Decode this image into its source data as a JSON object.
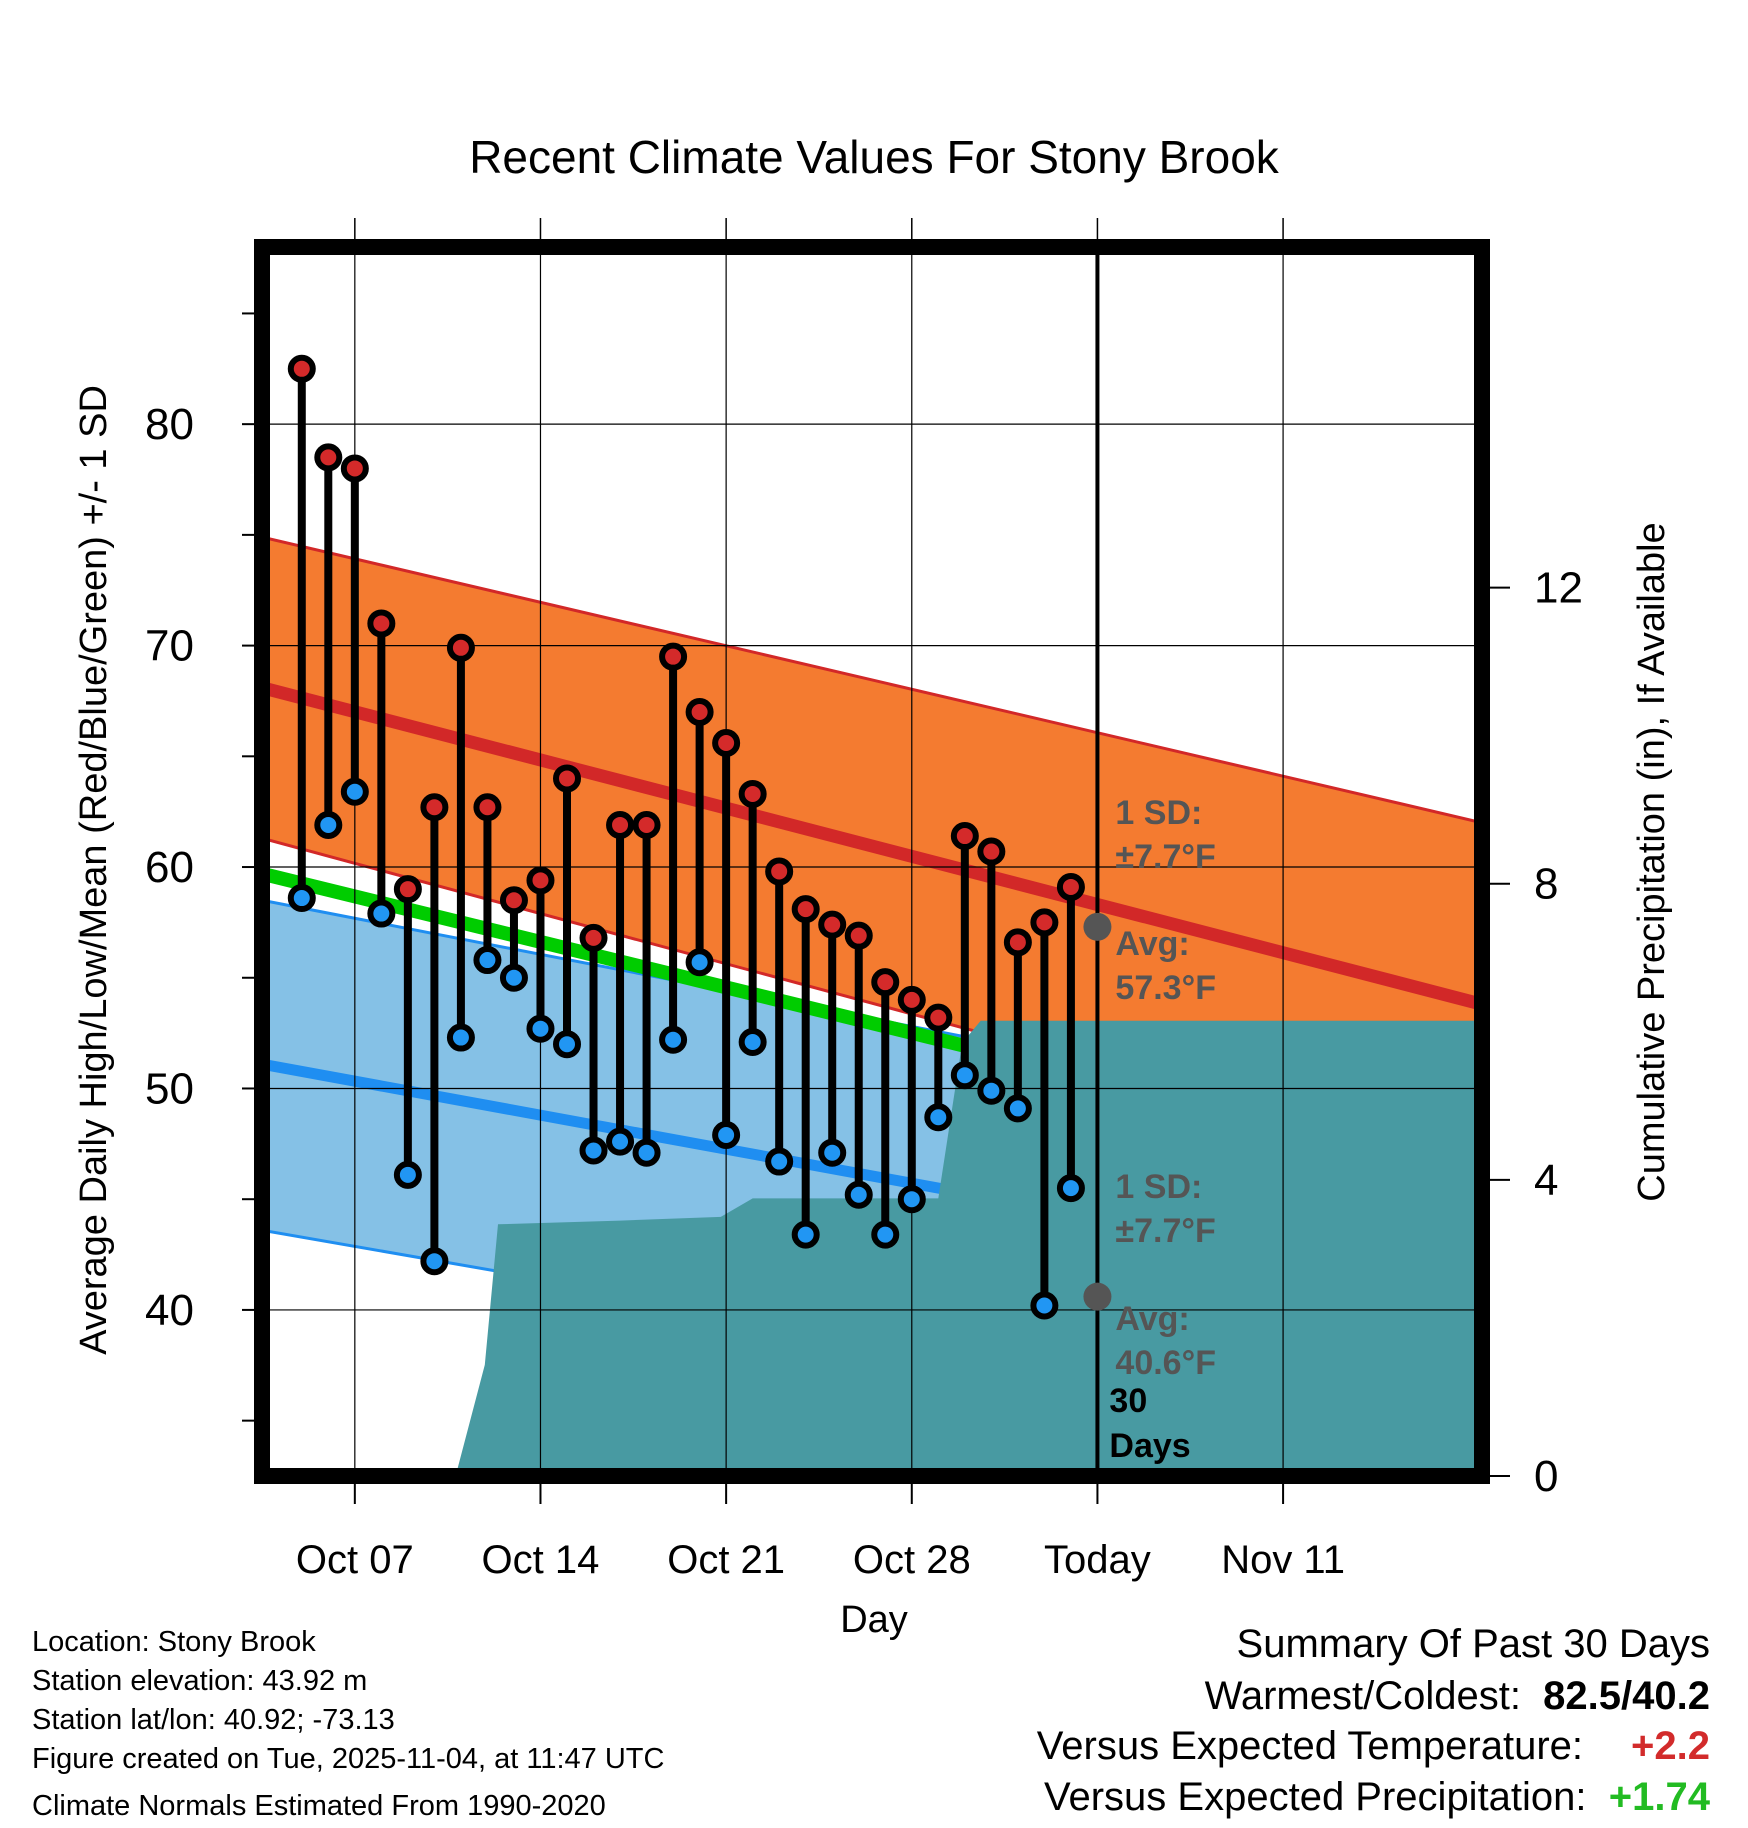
{
  "chart_data": {
    "type": "line",
    "title": "Recent Climate Values For Stony Brook",
    "xlabel": "Day",
    "ylabel": "Average Daily High/Low/Mean (Red/Blue/Green) +/- 1 SD",
    "ylabel_right": "Cumulative Precipitation (in), If Available",
    "ylim": [
      32.5,
      88
    ],
    "y2lim": [
      0,
      16.6
    ],
    "xlim": [
      3.5,
      49.5
    ],
    "y_ticks": [
      "40",
      "50",
      "60",
      "70",
      "80"
    ],
    "y2_ticks": [
      "0",
      "4",
      "8",
      "12"
    ],
    "x_ticks": [
      {
        "x": 7,
        "label": "Oct 07"
      },
      {
        "x": 14,
        "label": "Oct 14"
      },
      {
        "x": 21,
        "label": "Oct 21"
      },
      {
        "x": 28,
        "label": "Oct 28"
      },
      {
        "x": 35,
        "label": "Today"
      },
      {
        "x": 42,
        "label": "Nov 11"
      }
    ],
    "days": [
      5,
      6,
      7,
      8,
      9,
      10,
      11,
      12,
      13,
      14,
      15,
      16,
      17,
      18,
      19,
      20,
      21,
      22,
      23,
      24,
      25,
      26,
      27,
      28,
      29,
      30,
      31,
      32,
      33,
      34
    ],
    "highs": [
      82.5,
      78.5,
      78.0,
      71.0,
      59.0,
      62.7,
      69.9,
      62.7,
      58.5,
      59.4,
      64.0,
      56.8,
      61.9,
      61.9,
      69.5,
      67.0,
      65.6,
      63.3,
      59.8,
      58.1,
      57.4,
      56.9,
      54.8,
      54.0,
      53.2,
      61.4,
      60.7,
      56.6,
      57.5,
      59.1
    ],
    "lows": [
      58.6,
      61.9,
      63.4,
      57.9,
      46.1,
      42.2,
      52.3,
      55.8,
      55.0,
      52.7,
      52.0,
      47.2,
      47.6,
      47.1,
      52.2,
      55.7,
      47.9,
      52.1,
      46.7,
      43.4,
      47.1,
      45.2,
      43.4,
      45.0,
      48.7,
      50.6,
      49.9,
      49.1,
      40.2,
      45.5
    ],
    "normal_high": {
      "start": [
        3.5,
        68.1
      ],
      "end": [
        49.5,
        53.8
      ]
    },
    "normal_high_upper": {
      "start": [
        3.5,
        74.9
      ],
      "end": [
        49.5,
        62.0
      ]
    },
    "normal_high_lower": {
      "start": [
        3.5,
        61.3
      ],
      "end": [
        49.5,
        46.4
      ]
    },
    "normal_mean": {
      "start": [
        3.5,
        59.7
      ],
      "end": [
        49.5,
        46.2
      ]
    },
    "normal_low": {
      "start": [
        3.5,
        51.1
      ],
      "end": [
        49.5,
        41.0
      ]
    },
    "normal_low_upper": {
      "start": [
        3.5,
        58.5
      ],
      "end": [
        49.5,
        47.8
      ]
    },
    "normal_low_lower": {
      "start": [
        3.5,
        43.6
      ],
      "end": [
        49.5,
        34.0
      ]
    },
    "precip": [
      {
        "x": 10.8,
        "y": 0.0
      },
      {
        "x": 11.9,
        "y": 1.5
      },
      {
        "x": 12.4,
        "y": 3.4
      },
      {
        "x": 17.0,
        "y": 3.45
      },
      {
        "x": 20.8,
        "y": 3.5
      },
      {
        "x": 22.0,
        "y": 3.75
      },
      {
        "x": 29.0,
        "y": 3.75
      },
      {
        "x": 29.9,
        "y": 5.85
      },
      {
        "x": 30.6,
        "y": 6.15
      },
      {
        "x": 49.5,
        "y": 6.15
      }
    ],
    "today_x": 35,
    "today_high_avg": 57.3,
    "today_low_avg": 40.6,
    "annotations": {
      "high_sd_line1": "1 SD:",
      "high_sd_line2": "±7.7°F",
      "high_avg_line1": "Avg:",
      "high_avg_line2": "57.3°F",
      "low_sd_line1": "1 SD:",
      "low_sd_line2": "±7.7°F",
      "low_avg_line1": "Avg:",
      "low_avg_line2": "40.6°F",
      "days_line1": "30",
      "days_line2": "Days"
    },
    "colors": {
      "high_band": "#f47b30",
      "high_line": "#d22828",
      "low_band": "#85c1e6",
      "low_line": "#1f8ef1",
      "mean_line": "#00cc00",
      "precip": "#489aa2",
      "high_marker": "#d42a2a",
      "low_marker": "#2196f3",
      "annotation": "#555555"
    }
  },
  "info": {
    "location": "Location: Stony Brook",
    "elevation": "Station elevation: 43.92 m",
    "latlon": "Station lat/lon: 40.92; -73.13",
    "created": "Figure created on Tue, 2025-11-04, at 11:47 UTC",
    "normals": "Climate Normals Estimated From 1990-2020"
  },
  "summary": {
    "title": "Summary Of Past 30 Days",
    "warmest_label": "Warmest/Coldest:",
    "warmest_value": "82.5/40.2",
    "temp_label": "Versus Expected Temperature:",
    "temp_value": "+2.2",
    "precip_label": "Versus Expected Precipitation:",
    "precip_value": "+1.74"
  }
}
